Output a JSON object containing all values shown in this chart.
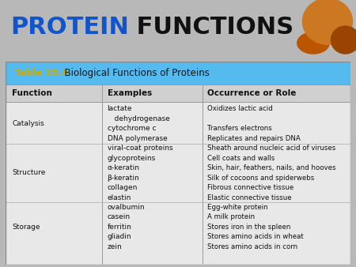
{
  "title_protein": "PROTEIN",
  "title_rest": " FUNCTIONS",
  "title_protein_color": "#1155cc",
  "title_rest_color": "#111111",
  "title_fontsize": 22,
  "table_number": "Table 19.4",
  "table_number_color": "#ccaa00",
  "table_subtitle": "  Biological Functions of Proteins",
  "table_subtitle_color": "#111111",
  "table_subtitle_fontsize": 8.5,
  "header_bg": "#55bbee",
  "col_headers": [
    "Function",
    "Examples",
    "Occurrence or Role"
  ],
  "col_header_fontsize": 7.5,
  "col_header_bg": "#c8c8c8",
  "bg_color": "#b8b8b8",
  "table_bg": "#e0e0e0",
  "cell_fontsize": 6.5,
  "rows": [
    {
      "function": "Catalysis",
      "examples": [
        "lactate",
        "   dehydrogenase",
        "cytochrome c",
        "DNA polymerase"
      ],
      "roles": [
        "Oxidizes lactic acid",
        "",
        "Transfers electrons",
        "Replicates and repairs DNA"
      ]
    },
    {
      "function": "Structure",
      "examples": [
        "viral-coat proteins",
        "glycoproteins",
        "α-keratin",
        "β-keratin",
        "collagen",
        "elastin"
      ],
      "roles": [
        "Sheath around nucleic acid of viruses",
        "Cell coats and walls",
        "Skin, hair, feathers, nails, and hooves",
        "Silk of cocoons and spiderwebs",
        "Fibrous connective tissue",
        "Elastic connective tissue"
      ]
    },
    {
      "function": "Storage",
      "examples": [
        "ovalbumin",
        "casein",
        "ferritin",
        "gliadin",
        "zein"
      ],
      "roles": [
        "Egg-white protein",
        "A milk protein",
        "Stores iron in the spleen",
        "Stores amino acids in wheat",
        "Stores amino acids in corn"
      ]
    }
  ],
  "orange_blob_color": "#cc6600",
  "orange_blob2_color": "#aa4400"
}
